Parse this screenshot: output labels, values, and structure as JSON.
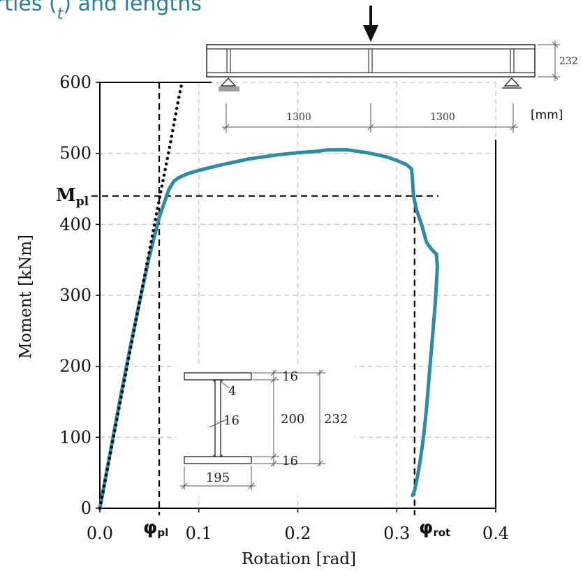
{
  "title": {
    "text": "rties (",
    "sub": "t",
    "text_after": ") and lengths",
    "color": "#2E7D99"
  },
  "colors": {
    "curve": "#2E8BA3",
    "grid": "#C8C8C8",
    "axis": "#000000",
    "dash": "#000000",
    "beam": "#333333",
    "support_fill": "#9E9E9E"
  },
  "chart_data": {
    "type": "line",
    "xlabel": "Rotation [rad]",
    "ylabel": "Moment [kNm]",
    "xlim": [
      0.0,
      0.4
    ],
    "ylim": [
      0,
      600
    ],
    "x_ticks": [
      0.0,
      0.1,
      0.2,
      0.3,
      0.4
    ],
    "x_tick_labels": [
      "0.0",
      "0.1",
      "0.2",
      "0.3",
      "0.4"
    ],
    "y_ticks": [
      0,
      100,
      200,
      300,
      400,
      500,
      600
    ],
    "y_tick_labels": [
      "0",
      "100",
      "200",
      "300",
      "400",
      "500",
      "600"
    ],
    "grid": true,
    "series": [
      {
        "values_x": [
          0.0,
          0.01,
          0.02,
          0.03,
          0.04,
          0.05,
          0.06,
          0.065,
          0.07,
          0.075,
          0.08,
          0.09,
          0.1,
          0.12,
          0.15,
          0.18,
          0.2,
          0.22,
          0.23,
          0.25,
          0.27,
          0.29,
          0.3,
          0.31,
          0.315,
          0.316,
          0.317,
          0.32,
          0.325,
          0.33,
          0.335,
          0.34,
          0.341,
          0.339,
          0.336,
          0.333,
          0.33,
          0.327,
          0.324,
          0.321,
          0.318,
          0.316
        ],
        "values_y": [
          0,
          75,
          150,
          222,
          290,
          355,
          410,
          430,
          450,
          461,
          466,
          472,
          476,
          483,
          492,
          498,
          501,
          503,
          505,
          505,
          501,
          495,
          490,
          484,
          478,
          460,
          440,
          420,
          400,
          375,
          365,
          358,
          340,
          290,
          240,
          190,
          140,
          100,
          70,
          45,
          25,
          18
        ]
      },
      {
        "values_x": [
          0.0,
          0.02,
          0.04,
          0.06,
          0.07,
          0.08,
          0.083
        ],
        "values_y": [
          0,
          145,
          290,
          435,
          505,
          580,
          600
        ]
      }
    ],
    "reference_lines": {
      "M_pl": 440,
      "phi_pl": 0.06,
      "phi_rot": 0.318
    }
  },
  "annotations": {
    "mpl_main": "M",
    "mpl_sub": "pl",
    "phipl_main": "φ",
    "phipl_sub": "pl",
    "phirot_main": "φ",
    "phirot_sub": "rot"
  },
  "beam": {
    "span_left": "1300",
    "span_right": "1300",
    "height": "232",
    "unit": "[mm]"
  },
  "section": {
    "flange_top": "16",
    "flange_bottom": "16",
    "web_height": "200",
    "total_height": "232",
    "weld": "4",
    "web_thickness": "16",
    "width": "195"
  }
}
